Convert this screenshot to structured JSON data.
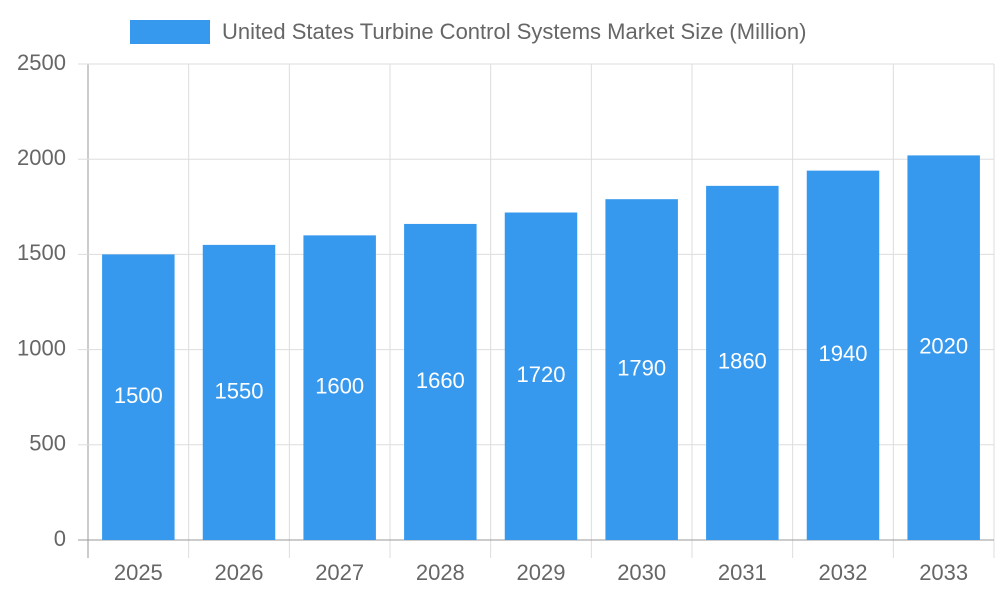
{
  "chart_data": {
    "type": "bar",
    "categories": [
      "2025",
      "2026",
      "2027",
      "2028",
      "2029",
      "2030",
      "2031",
      "2032",
      "2033"
    ],
    "series": [
      {
        "name": "United States Turbine Control Systems Market Size (Million)",
        "color": "#3799ee",
        "values": [
          1500,
          1550,
          1600,
          1660,
          1720,
          1790,
          1860,
          1940,
          2020
        ]
      }
    ],
    "ylim": [
      0,
      2500
    ],
    "yticks": [
      0,
      500,
      1000,
      1500,
      2000,
      2500
    ],
    "grid": true,
    "legend": "top"
  }
}
